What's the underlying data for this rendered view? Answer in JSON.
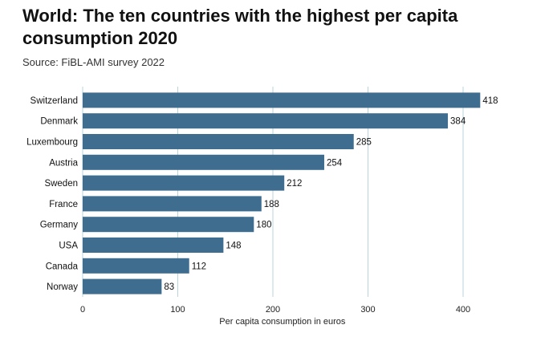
{
  "title": "World: The ten countries with the highest per capita consumption 2020",
  "source": "Source: FiBL-AMI survey 2022",
  "colors": {
    "bar": "#3f6d8f",
    "grid": "#b9d4dc"
  },
  "chart_data": {
    "type": "bar",
    "orientation": "horizontal",
    "categories": [
      "Switzerland",
      "Denmark",
      "Luxembourg",
      "Austria",
      "Sweden",
      "France",
      "Germany",
      "USA",
      "Canada",
      "Norway"
    ],
    "values": [
      418,
      384,
      285,
      254,
      212,
      188,
      180,
      148,
      112,
      83
    ],
    "xlabel": "Per capita consumption in euros",
    "ylabel": "",
    "xlim": [
      0,
      420
    ],
    "xticks": [
      0,
      100,
      200,
      300,
      400
    ],
    "grid": "vertical",
    "data_labels": true
  }
}
